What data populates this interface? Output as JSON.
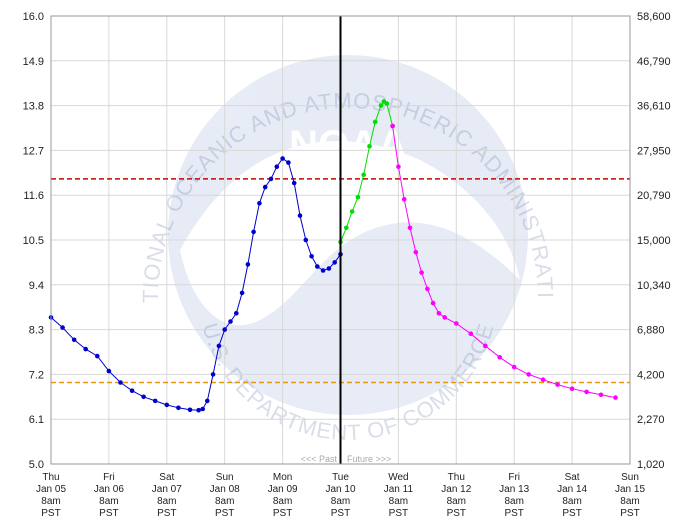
{
  "chart_data": {
    "type": "line",
    "left_axis": {
      "ticks": [
        "16.0",
        "14.9",
        "13.8",
        "12.7",
        "11.6",
        "10.5",
        "9.4",
        "8.3",
        "7.2",
        "6.1",
        "5.0"
      ],
      "ylim": [
        5.0,
        16.0
      ]
    },
    "right_axis": {
      "ticks": [
        "58,600",
        "46,790",
        "36,610",
        "27,950",
        "20,790",
        "15,000",
        "10,340",
        "6,880",
        "4,200",
        "2,270",
        "1,020"
      ]
    },
    "x_ticks": [
      [
        "Thu",
        "Jan 05",
        "8am",
        "PST"
      ],
      [
        "Fri",
        "Jan 06",
        "8am",
        "PST"
      ],
      [
        "Sat",
        "Jan 07",
        "8am",
        "PST"
      ],
      [
        "Sun",
        "Jan 08",
        "8am",
        "PST"
      ],
      [
        "Mon",
        "Jan 09",
        "8am",
        "PST"
      ],
      [
        "Tue",
        "Jan 10",
        "8am",
        "PST"
      ],
      [
        "Wed",
        "Jan 11",
        "8am",
        "PST"
      ],
      [
        "Thu",
        "Jan 12",
        "8am",
        "PST"
      ],
      [
        "Fri",
        "Jan 13",
        "8am",
        "PST"
      ],
      [
        "Sat",
        "Jan 14",
        "8am",
        "PST"
      ],
      [
        "Sun",
        "Jan 15",
        "8am",
        "PST"
      ]
    ],
    "x_unit": "days since Jan 05 8am PST",
    "xlim": [
      0,
      10
    ],
    "now_line_x": 5,
    "past_future_label": "<<< Past    Future >>>",
    "thresholds": [
      {
        "value": 12.0,
        "color": "#cc0000"
      },
      {
        "value": 7.0,
        "color": "#e69900"
      }
    ],
    "grid": true,
    "series": [
      {
        "color": "#0000cc",
        "points": [
          [
            0.0,
            8.6
          ],
          [
            0.2,
            8.35
          ],
          [
            0.4,
            8.05
          ],
          [
            0.6,
            7.82
          ],
          [
            0.8,
            7.65
          ],
          [
            1.0,
            7.28
          ],
          [
            1.2,
            7.0
          ],
          [
            1.4,
            6.8
          ],
          [
            1.6,
            6.65
          ],
          [
            1.8,
            6.55
          ],
          [
            2.0,
            6.45
          ],
          [
            2.2,
            6.38
          ],
          [
            2.4,
            6.33
          ],
          [
            2.55,
            6.32
          ],
          [
            2.62,
            6.35
          ],
          [
            2.7,
            6.55
          ],
          [
            2.8,
            7.2
          ],
          [
            2.9,
            7.9
          ],
          [
            3.0,
            8.3
          ],
          [
            3.1,
            8.5
          ],
          [
            3.2,
            8.7
          ],
          [
            3.3,
            9.2
          ],
          [
            3.4,
            9.9
          ],
          [
            3.5,
            10.7
          ],
          [
            3.6,
            11.4
          ],
          [
            3.7,
            11.8
          ],
          [
            3.8,
            12.0
          ],
          [
            3.9,
            12.3
          ],
          [
            4.0,
            12.5
          ],
          [
            4.1,
            12.4
          ],
          [
            4.2,
            11.9
          ],
          [
            4.3,
            11.1
          ],
          [
            4.4,
            10.5
          ],
          [
            4.5,
            10.1
          ],
          [
            4.6,
            9.85
          ],
          [
            4.7,
            9.75
          ],
          [
            4.8,
            9.8
          ],
          [
            4.9,
            9.95
          ],
          [
            5.0,
            10.15
          ]
        ]
      },
      {
        "color": "#00dd00",
        "points": [
          [
            5.0,
            10.45
          ],
          [
            5.1,
            10.8
          ],
          [
            5.2,
            11.2
          ],
          [
            5.3,
            11.55
          ],
          [
            5.4,
            12.1
          ],
          [
            5.5,
            12.8
          ],
          [
            5.6,
            13.4
          ],
          [
            5.7,
            13.8
          ],
          [
            5.75,
            13.9
          ],
          [
            5.8,
            13.85
          ],
          [
            5.9,
            13.3
          ]
        ]
      },
      {
        "color": "#ff00ff",
        "points": [
          [
            5.9,
            13.3
          ],
          [
            6.0,
            12.3
          ],
          [
            6.1,
            11.5
          ],
          [
            6.2,
            10.8
          ],
          [
            6.3,
            10.2
          ],
          [
            6.4,
            9.7
          ],
          [
            6.5,
            9.3
          ],
          [
            6.6,
            8.95
          ],
          [
            6.7,
            8.7
          ],
          [
            6.8,
            8.6
          ],
          [
            7.0,
            8.45
          ],
          [
            7.25,
            8.2
          ],
          [
            7.5,
            7.9
          ],
          [
            7.75,
            7.62
          ],
          [
            8.0,
            7.38
          ],
          [
            8.25,
            7.2
          ],
          [
            8.5,
            7.07
          ],
          [
            8.75,
            6.95
          ],
          [
            9.0,
            6.85
          ],
          [
            9.25,
            6.77
          ],
          [
            9.5,
            6.7
          ],
          [
            9.75,
            6.63
          ]
        ]
      }
    ]
  },
  "watermark": {
    "top_text": "NATIONAL OCEANIC AND ATMOSPHERIC ADMINISTRATION",
    "bottom_text": "U.S. DEPARTMENT OF COMMERCE",
    "center_text": "NOAA"
  }
}
